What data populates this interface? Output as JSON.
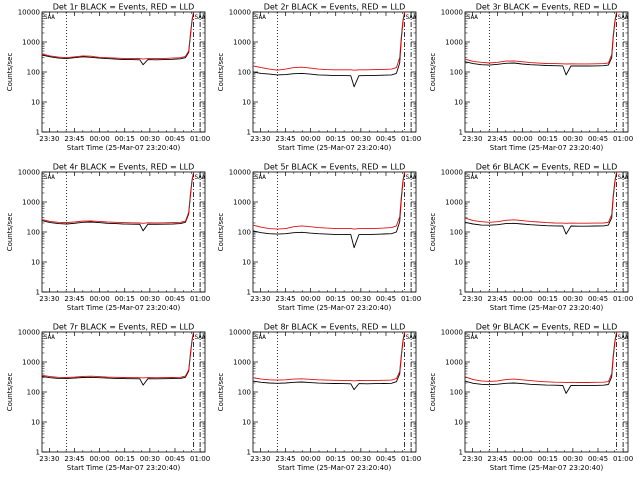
{
  "colors": {
    "events": "#000000",
    "lld": "#dd1111",
    "background": "#ffffff"
  },
  "common": {
    "xlabel": "Start Time (25-Mar-07 23:20:40)",
    "ylabel": "Counts/sec",
    "x_ticks": [
      "23:30",
      "23:45",
      "00:00",
      "00:15",
      "00:30",
      "00:45",
      "01:00"
    ],
    "y_ticks": [
      "1",
      "10",
      "100",
      "1000",
      "10000"
    ],
    "marker_labels": [
      "SAA",
      "SAA"
    ]
  },
  "chart_data": [
    {
      "type": "line",
      "title": "Det 1r BLACK = Events, RED = LLD",
      "xlabel": "Start Time (25-Mar-07 23:20:40)",
      "ylabel": "Counts/sec",
      "xlim": [
        0,
        100
      ],
      "ylim": [
        1,
        10000
      ],
      "yscale": "log",
      "x": [
        0,
        5,
        10,
        15,
        20,
        25,
        30,
        35,
        40,
        45,
        50,
        55,
        60,
        62,
        65,
        70,
        75,
        80,
        85,
        88,
        90,
        91,
        92,
        93
      ],
      "series": [
        {
          "name": "Events",
          "values": [
            370,
            320,
            290,
            280,
            300,
            320,
            310,
            290,
            280,
            270,
            260,
            260,
            255,
            175,
            260,
            255,
            260,
            265,
            275,
            300,
            450,
            1500,
            5000,
            9500
          ]
        },
        {
          "name": "LLD",
          "values": [
            400,
            345,
            315,
            300,
            320,
            345,
            335,
            310,
            300,
            290,
            285,
            285,
            280,
            270,
            280,
            280,
            285,
            290,
            300,
            330,
            500,
            1700,
            5500,
            10500
          ]
        }
      ],
      "vlines": {
        "dotted": [
          15
        ],
        "dashdot": [
          93,
          97
        ]
      }
    },
    {
      "type": "line",
      "title": "Det 2r BLACK = Events, RED = LLD",
      "xlabel": "Start Time (25-Mar-07 23:20:40)",
      "ylabel": "Counts/sec",
      "xlim": [
        0,
        100
      ],
      "ylim": [
        1,
        10000
      ],
      "yscale": "log",
      "x": [
        0,
        5,
        10,
        15,
        20,
        25,
        30,
        35,
        40,
        45,
        50,
        55,
        60,
        62,
        65,
        70,
        75,
        80,
        85,
        88,
        90,
        91,
        92,
        93
      ],
      "series": [
        {
          "name": "Events",
          "values": [
            100,
            90,
            85,
            80,
            82,
            88,
            90,
            85,
            80,
            78,
            76,
            76,
            75,
            32,
            75,
            76,
            77,
            78,
            80,
            90,
            200,
            1200,
            5000,
            9000
          ]
        },
        {
          "name": "LLD",
          "values": [
            160,
            140,
            125,
            115,
            125,
            140,
            145,
            135,
            125,
            120,
            118,
            118,
            118,
            115,
            118,
            118,
            120,
            122,
            125,
            140,
            300,
            1500,
            5500,
            10000
          ]
        }
      ],
      "vlines": {
        "dotted": [
          15
        ],
        "dashdot": [
          93,
          97
        ]
      }
    },
    {
      "type": "line",
      "title": "Det 3r BLACK = Events, RED = LLD",
      "xlabel": "Start Time (25-Mar-07 23:20:40)",
      "ylabel": "Counts/sec",
      "xlim": [
        0,
        100
      ],
      "ylim": [
        1,
        10000
      ],
      "yscale": "log",
      "x": [
        0,
        5,
        10,
        15,
        20,
        25,
        30,
        35,
        40,
        45,
        50,
        55,
        60,
        62,
        65,
        70,
        75,
        80,
        85,
        88,
        90,
        91,
        92,
        93
      ],
      "series": [
        {
          "name": "Events",
          "values": [
            220,
            190,
            175,
            170,
            180,
            195,
            200,
            185,
            175,
            170,
            165,
            162,
            160,
            80,
            160,
            158,
            158,
            160,
            162,
            170,
            300,
            1500,
            5000,
            9000
          ]
        },
        {
          "name": "LLD",
          "values": [
            270,
            225,
            210,
            200,
            210,
            230,
            235,
            220,
            205,
            198,
            192,
            190,
            188,
            185,
            188,
            186,
            186,
            188,
            190,
            200,
            380,
            1800,
            5500,
            10000
          ]
        }
      ],
      "vlines": {
        "dotted": [
          15
        ],
        "dashdot": [
          93,
          97
        ]
      }
    },
    {
      "type": "line",
      "title": "Det 4r BLACK = Events, RED = LLD",
      "xlabel": "Start Time (25-Mar-07 23:20:40)",
      "ylabel": "Counts/sec",
      "xlim": [
        0,
        100
      ],
      "ylim": [
        1,
        10000
      ],
      "yscale": "log",
      "x": [
        0,
        5,
        10,
        15,
        20,
        25,
        30,
        35,
        40,
        45,
        50,
        55,
        60,
        62,
        65,
        70,
        75,
        80,
        85,
        88,
        90,
        91,
        92,
        93
      ],
      "series": [
        {
          "name": "Events",
          "values": [
            240,
            205,
            190,
            185,
            195,
            210,
            215,
            205,
            195,
            190,
            185,
            182,
            180,
            110,
            182,
            180,
            182,
            185,
            190,
            210,
            400,
            1500,
            5000,
            9000
          ]
        },
        {
          "name": "LLD",
          "values": [
            260,
            225,
            210,
            205,
            215,
            230,
            235,
            225,
            215,
            210,
            205,
            202,
            200,
            195,
            202,
            200,
            202,
            205,
            210,
            230,
            450,
            1700,
            5500,
            10000
          ]
        }
      ],
      "vlines": {
        "dotted": [
          15
        ],
        "dashdot": [
          93,
          97
        ]
      }
    },
    {
      "type": "line",
      "title": "Det 5r BLACK = Events, RED = LLD",
      "xlabel": "Start Time (25-Mar-07 23:20:40)",
      "ylabel": "Counts/sec",
      "xlim": [
        0,
        100
      ],
      "ylim": [
        1,
        10000
      ],
      "yscale": "log",
      "x": [
        0,
        5,
        10,
        15,
        20,
        25,
        30,
        35,
        40,
        45,
        50,
        55,
        60,
        62,
        65,
        70,
        75,
        80,
        85,
        88,
        90,
        91,
        92,
        93
      ],
      "series": [
        {
          "name": "Events",
          "values": [
            110,
            95,
            88,
            85,
            88,
            95,
            98,
            92,
            88,
            85,
            83,
            82,
            82,
            30,
            82,
            82,
            84,
            86,
            88,
            100,
            220,
            1200,
            5000,
            9000
          ]
        },
        {
          "name": "LLD",
          "values": [
            170,
            145,
            130,
            125,
            130,
            150,
            160,
            150,
            140,
            135,
            132,
            130,
            130,
            125,
            130,
            130,
            132,
            135,
            140,
            160,
            320,
            1500,
            5500,
            10000
          ]
        }
      ],
      "vlines": {
        "dotted": [
          15
        ],
        "dashdot": [
          93,
          97
        ]
      }
    },
    {
      "type": "line",
      "title": "Det 6r BLACK = Events, RED = LLD",
      "xlabel": "Start Time (25-Mar-07 23:20:40)",
      "ylabel": "Counts/sec",
      "xlim": [
        0,
        100
      ],
      "ylim": [
        1,
        10000
      ],
      "yscale": "log",
      "x": [
        0,
        5,
        10,
        15,
        20,
        25,
        30,
        35,
        40,
        45,
        50,
        55,
        60,
        62,
        65,
        70,
        75,
        80,
        85,
        88,
        90,
        91,
        92,
        93
      ],
      "series": [
        {
          "name": "Events",
          "values": [
            210,
            185,
            170,
            168,
            175,
            190,
            195,
            185,
            175,
            168,
            162,
            160,
            158,
            85,
            158,
            156,
            156,
            158,
            160,
            170,
            300,
            1500,
            5000,
            9000
          ]
        },
        {
          "name": "LLD",
          "values": [
            290,
            240,
            220,
            210,
            220,
            245,
            255,
            240,
            225,
            215,
            205,
            200,
            198,
            195,
            198,
            196,
            196,
            198,
            200,
            210,
            380,
            1800,
            5500,
            10000
          ]
        }
      ],
      "vlines": {
        "dotted": [
          15
        ],
        "dashdot": [
          93,
          97
        ]
      }
    },
    {
      "type": "line",
      "title": "Det 7r BLACK = Events, RED = LLD",
      "xlabel": "Start Time (25-Mar-07 23:20:40)",
      "ylabel": "Counts/sec",
      "xlim": [
        0,
        100
      ],
      "ylim": [
        1,
        10000
      ],
      "yscale": "log",
      "x": [
        0,
        5,
        10,
        15,
        20,
        25,
        30,
        35,
        40,
        45,
        50,
        55,
        60,
        62,
        65,
        70,
        75,
        80,
        85,
        88,
        90,
        91,
        92,
        93
      ],
      "series": [
        {
          "name": "Events",
          "values": [
            330,
            300,
            285,
            280,
            290,
            305,
            310,
            300,
            290,
            285,
            280,
            278,
            275,
            170,
            278,
            276,
            278,
            280,
            285,
            310,
            500,
            1600,
            5000,
            9500
          ]
        },
        {
          "name": "LLD",
          "values": [
            360,
            325,
            310,
            305,
            315,
            330,
            335,
            325,
            315,
            310,
            305,
            302,
            300,
            295,
            302,
            300,
            302,
            305,
            310,
            340,
            550,
            1800,
            5500,
            10500
          ]
        }
      ],
      "vlines": {
        "dotted": [
          15
        ],
        "dashdot": [
          93,
          97
        ]
      }
    },
    {
      "type": "line",
      "title": "Det 8r BLACK = Events, RED = LLD",
      "xlabel": "Start Time (25-Mar-07 23:20:40)",
      "ylabel": "Counts/sec",
      "xlim": [
        0,
        100
      ],
      "ylim": [
        1,
        10000
      ],
      "yscale": "log",
      "x": [
        0,
        5,
        10,
        15,
        20,
        25,
        30,
        35,
        40,
        45,
        50,
        55,
        60,
        62,
        65,
        70,
        75,
        80,
        85,
        88,
        90,
        91,
        92,
        93
      ],
      "series": [
        {
          "name": "Events",
          "values": [
            230,
            210,
            200,
            195,
            200,
            210,
            215,
            205,
            198,
            195,
            192,
            190,
            188,
            120,
            190,
            188,
            190,
            192,
            195,
            220,
            400,
            1500,
            5000,
            9000
          ]
        },
        {
          "name": "LLD",
          "values": [
            300,
            270,
            255,
            250,
            255,
            270,
            275,
            265,
            255,
            250,
            245,
            243,
            240,
            235,
            243,
            240,
            243,
            245,
            250,
            280,
            480,
            1700,
            5500,
            10000
          ]
        }
      ],
      "vlines": {
        "dotted": [
          15
        ],
        "dashdot": [
          93,
          97
        ]
      }
    },
    {
      "type": "line",
      "title": "Det 9r BLACK = Events, RED = LLD",
      "xlabel": "Start Time (25-Mar-07 23:20:40)",
      "ylabel": "Counts/sec",
      "xlim": [
        0,
        100
      ],
      "ylim": [
        1,
        10000
      ],
      "yscale": "log",
      "x": [
        0,
        5,
        10,
        15,
        20,
        25,
        30,
        35,
        40,
        45,
        50,
        55,
        60,
        62,
        65,
        70,
        75,
        80,
        85,
        88,
        90,
        91,
        92,
        93
      ],
      "series": [
        {
          "name": "Events",
          "values": [
            230,
            195,
            180,
            175,
            182,
            195,
            200,
            190,
            180,
            175,
            170,
            168,
            165,
            90,
            166,
            164,
            164,
            166,
            168,
            178,
            320,
            1500,
            5000,
            9000
          ]
        },
        {
          "name": "LLD",
          "values": [
            320,
            260,
            235,
            225,
            235,
            260,
            270,
            255,
            240,
            228,
            218,
            212,
            210,
            205,
            210,
            208,
            208,
            210,
            212,
            222,
            400,
            1800,
            5500,
            10000
          ]
        }
      ],
      "vlines": {
        "dotted": [
          15
        ],
        "dashdot": [
          93,
          97
        ]
      }
    }
  ]
}
